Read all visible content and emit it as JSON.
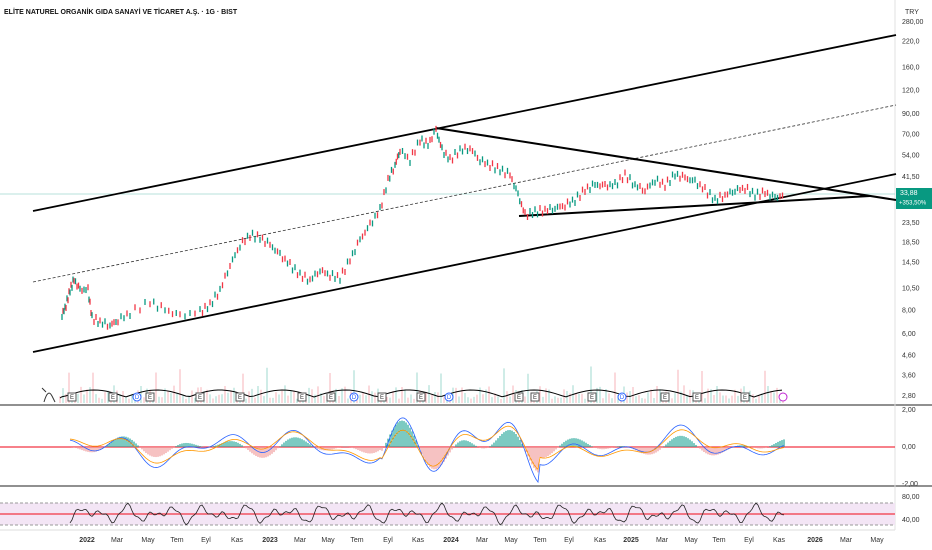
{
  "header": {
    "title": "ELİTE NATUREL ORGANİK GIDA SANAYİ VE TİCARET A.Ş. · 1G · BIST",
    "currency": "TRY"
  },
  "price_axis": {
    "ticks": [
      {
        "value": 280,
        "label": "280,00"
      },
      {
        "value": 220,
        "label": "220,0"
      },
      {
        "value": 160,
        "label": "160,0"
      },
      {
        "value": 120,
        "label": "120,0"
      },
      {
        "value": 90,
        "label": "90,00"
      },
      {
        "value": 70,
        "label": "70,00"
      },
      {
        "value": 54,
        "label": "54,00"
      },
      {
        "value": 41.5,
        "label": "41,50"
      },
      {
        "value": 23.5,
        "label": "23,50"
      },
      {
        "value": 18.5,
        "label": "18,50"
      },
      {
        "value": 14.5,
        "label": "14,50"
      },
      {
        "value": 10.5,
        "label": "10,50"
      },
      {
        "value": 8,
        "label": "8,00"
      },
      {
        "value": 6,
        "label": "6,00"
      },
      {
        "value": 4.6,
        "label": "4,60"
      },
      {
        "value": 3.6,
        "label": "3,60"
      },
      {
        "value": 2.8,
        "label": "2,80"
      }
    ]
  },
  "last_price": {
    "value": 33.88,
    "label": "33,88",
    "change": "+353,50%"
  },
  "macd_axis": {
    "ticks": [
      {
        "value": 2,
        "label": "2,00"
      },
      {
        "value": 0,
        "label": "0,00"
      },
      {
        "value": -2,
        "label": "-2,00"
      }
    ]
  },
  "rsi_axis": {
    "ticks": [
      {
        "value": 80,
        "label": "80,00"
      },
      {
        "value": 40,
        "label": "40,00"
      }
    ]
  },
  "time_axis": {
    "labels": [
      "2022",
      "Mar",
      "May",
      "Tem",
      "Eyl",
      "Kas",
      "2023",
      "Mar",
      "May",
      "Tem",
      "Eyl",
      "Kas",
      "2024",
      "Mar",
      "May",
      "Tem",
      "Eyl",
      "Kas",
      "2025",
      "Mar",
      "May",
      "Tem",
      "Eyl",
      "Kas",
      "2026",
      "Mar",
      "May"
    ]
  },
  "events": [
    "E",
    "E",
    "D",
    "E",
    "E",
    "E",
    "E",
    "E",
    "D",
    "E",
    "E",
    "D",
    "E",
    "E",
    "E",
    "D",
    "E",
    "E",
    "E"
  ]
}
